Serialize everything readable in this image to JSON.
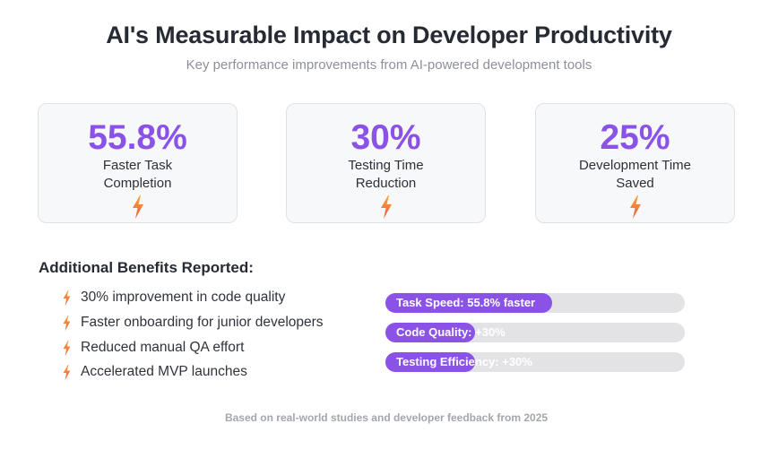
{
  "header": {
    "title": "AI's Measurable Impact on Developer Productivity",
    "subtitle": "Key performance improvements from AI-powered development tools"
  },
  "stats": [
    {
      "value": "55.8%",
      "label": "Faster Task Completion",
      "icon": "lightning-bolt-icon"
    },
    {
      "value": "30%",
      "label": "Testing Time Reduction",
      "icon": "lightning-bolt-icon"
    },
    {
      "value": "25%",
      "label": "Development Time Saved",
      "icon": "lightning-bolt-icon"
    }
  ],
  "benefits": {
    "title": "Additional Benefits Reported:",
    "items": [
      "30% improvement in code quality",
      "Faster onboarding for junior developers",
      "Reduced manual QA effort",
      "Accelerated MVP launches"
    ]
  },
  "bars": [
    {
      "label": "Task Speed: 55.8% faster",
      "fill_fraction": 0.558
    },
    {
      "label": "Code Quality: +30%",
      "fill_fraction": 0.3
    },
    {
      "label": "Testing Efficiency: +30%",
      "fill_fraction": 0.3
    }
  ],
  "footer": "Based on real-world studies and developer feedback from 2025",
  "colors": {
    "accent": "#8b52e8",
    "bolt_top": "#f7a53b",
    "bolt_bottom": "#ef5a3c",
    "track": "#e3e3e6"
  }
}
